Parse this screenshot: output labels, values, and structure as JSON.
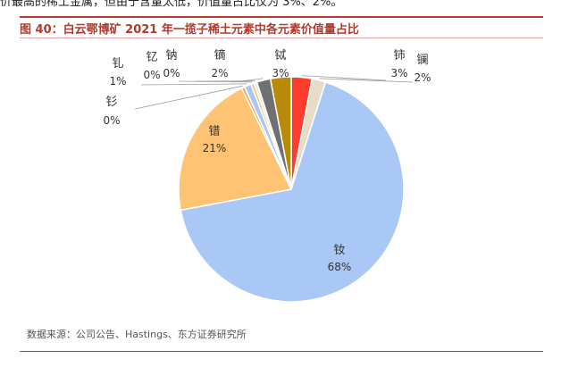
{
  "top_text": "价最高的稀土金属，但由于含量太低，价值量占比仅为 3%、2%。",
  "title": "图 40：白云鄂博矿 2021 年一揽子稀土元素中各元素价值量占比",
  "source": "数据来源：公司公告、Hastings、东方证券研究所",
  "colors": {
    "accent": "#b03a2e"
  },
  "chart_data": {
    "type": "pie",
    "labels": [
      "钕",
      "镨",
      "钐",
      "钆",
      "钇",
      "钠",
      "镝",
      "铽",
      "铈",
      "镧"
    ],
    "values": [
      68,
      21,
      0,
      1,
      0,
      0,
      2,
      3,
      3,
      2
    ],
    "value_labels": [
      "68%",
      "21%",
      "0%",
      "1%",
      "0%",
      "0%",
      "2%",
      "3%",
      "3%",
      "2%"
    ],
    "colors": [
      "#a9c8f5",
      "#fec474",
      "#f2a35a",
      "#a9c8f5",
      "#f4c27a",
      "#e9e9e9",
      "#707070",
      "#b98a07",
      "#ff3d2e",
      "#e6dcc8"
    ]
  }
}
